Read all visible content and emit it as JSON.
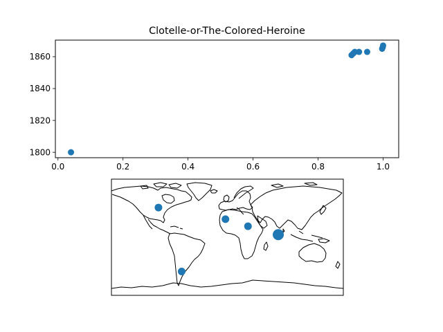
{
  "chart_data": [
    {
      "type": "scatter",
      "title": "Clotelle-or-The-Colored-Heroine",
      "xlabel": "",
      "ylabel": "",
      "xlim": [
        -0.008,
        1.048
      ],
      "ylim": [
        1796.6,
        1870.4
      ],
      "xticks": [
        0.0,
        0.2,
        0.4,
        0.6,
        0.8,
        1.0
      ],
      "xtick_labels": [
        "0.0",
        "0.2",
        "0.4",
        "0.6",
        "0.8",
        "1.0"
      ],
      "yticks": [
        1800,
        1820,
        1840,
        1860
      ],
      "ytick_labels": [
        "1800",
        "1820",
        "1840",
        "1860"
      ],
      "grid": false,
      "marker_color": "#1f77b4",
      "points": [
        {
          "x": 0.04,
          "y": 1800
        },
        {
          "x": 0.903,
          "y": 1861
        },
        {
          "x": 0.908,
          "y": 1862
        },
        {
          "x": 0.913,
          "y": 1863
        },
        {
          "x": 0.926,
          "y": 1863
        },
        {
          "x": 0.951,
          "y": 1863
        },
        {
          "x": 0.997,
          "y": 1865
        },
        {
          "x": 0.999,
          "y": 1866
        },
        {
          "x": 1.0,
          "y": 1867
        }
      ]
    },
    {
      "type": "map",
      "projection": "plate-carree",
      "extent_lon": [
        -180,
        180
      ],
      "extent_lat": [
        -90,
        90
      ],
      "marker_color": "#1f77b4",
      "points": [
        {
          "lon": -107,
          "lat": 46,
          "size": 1
        },
        {
          "lon": -3,
          "lat": 28,
          "size": 1
        },
        {
          "lon": 32,
          "lat": 17,
          "size": 1
        },
        {
          "lon": 79,
          "lat": 4,
          "size": 2
        },
        {
          "lon": -71,
          "lat": -53,
          "size": 1
        }
      ]
    }
  ]
}
